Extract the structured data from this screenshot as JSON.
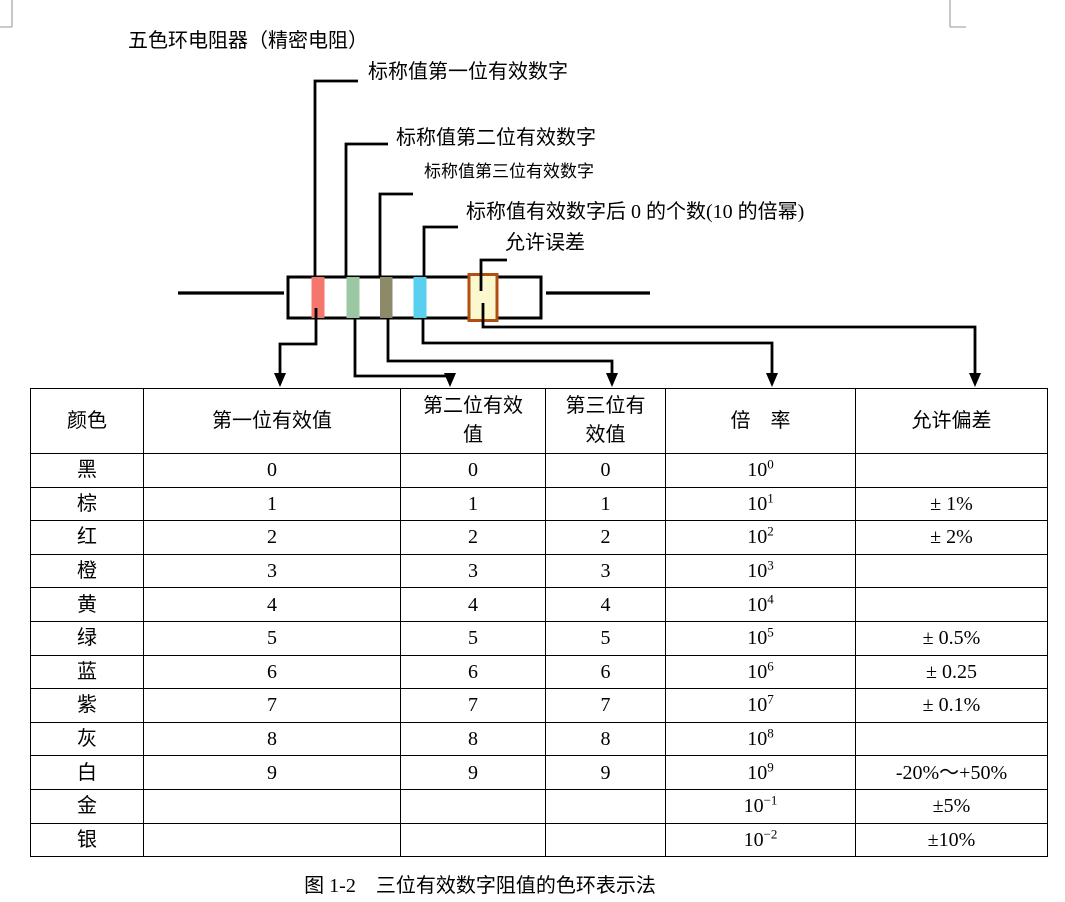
{
  "diagram": {
    "title": "五色环电阻器（精密电阻）",
    "labels": {
      "first_digit": "标称值第一位有效数字",
      "second_digit": "标称值第二位有效数字",
      "third_digit": "标称值第三位有效数字",
      "multiplier": "标称值有效数字后 0 的个数(10 的倍幂)",
      "tolerance": "允许误差"
    },
    "band_colors": {
      "band1_red": "#f5766c",
      "band2_green": "#9cc7a3",
      "band3_olive": "#8d8a69",
      "band4_cyan": "#5ad0f0",
      "band5_yellow_fill": "#fbf8cd",
      "band5_yellow_border": "#b04f10"
    }
  },
  "table": {
    "headers": [
      "颜色",
      "第一位有效值",
      "第二位有效\n值",
      "第三位有\n效值",
      "倍　率",
      "允许偏差"
    ],
    "rows": [
      {
        "color": "黑",
        "d1": "0",
        "d2": "0",
        "d3": "0",
        "mult": "10^0",
        "tol": ""
      },
      {
        "color": "棕",
        "d1": "1",
        "d2": "1",
        "d3": "1",
        "mult": "10^1",
        "tol": "± 1%"
      },
      {
        "color": "红",
        "d1": "2",
        "d2": "2",
        "d3": "2",
        "mult": "10^2",
        "tol": "± 2%"
      },
      {
        "color": "橙",
        "d1": "3",
        "d2": "3",
        "d3": "3",
        "mult": "10^3",
        "tol": ""
      },
      {
        "color": "黄",
        "d1": "4",
        "d2": "4",
        "d3": "4",
        "mult": "10^4",
        "tol": ""
      },
      {
        "color": "绿",
        "d1": "5",
        "d2": "5",
        "d3": "5",
        "mult": "10^5",
        "tol": "± 0.5%"
      },
      {
        "color": "蓝",
        "d1": "6",
        "d2": "6",
        "d3": "6",
        "mult": "10^6",
        "tol": "± 0.25"
      },
      {
        "color": "紫",
        "d1": "7",
        "d2": "7",
        "d3": "7",
        "mult": "10^7",
        "tol": "± 0.1%"
      },
      {
        "color": "灰",
        "d1": "8",
        "d2": "8",
        "d3": "8",
        "mult": "10^8",
        "tol": ""
      },
      {
        "color": "白",
        "d1": "9",
        "d2": "9",
        "d3": "9",
        "mult": "10^9",
        "tol": "-20%～+50%"
      },
      {
        "color": "金",
        "d1": "",
        "d2": "",
        "d3": "",
        "mult": "10^-1",
        "tol": "±5%"
      },
      {
        "color": "银",
        "d1": "",
        "d2": "",
        "d3": "",
        "mult": "10^-2",
        "tol": "±10%"
      }
    ]
  },
  "caption": "图 1-2　三位有效数字阻值的色环表示法"
}
